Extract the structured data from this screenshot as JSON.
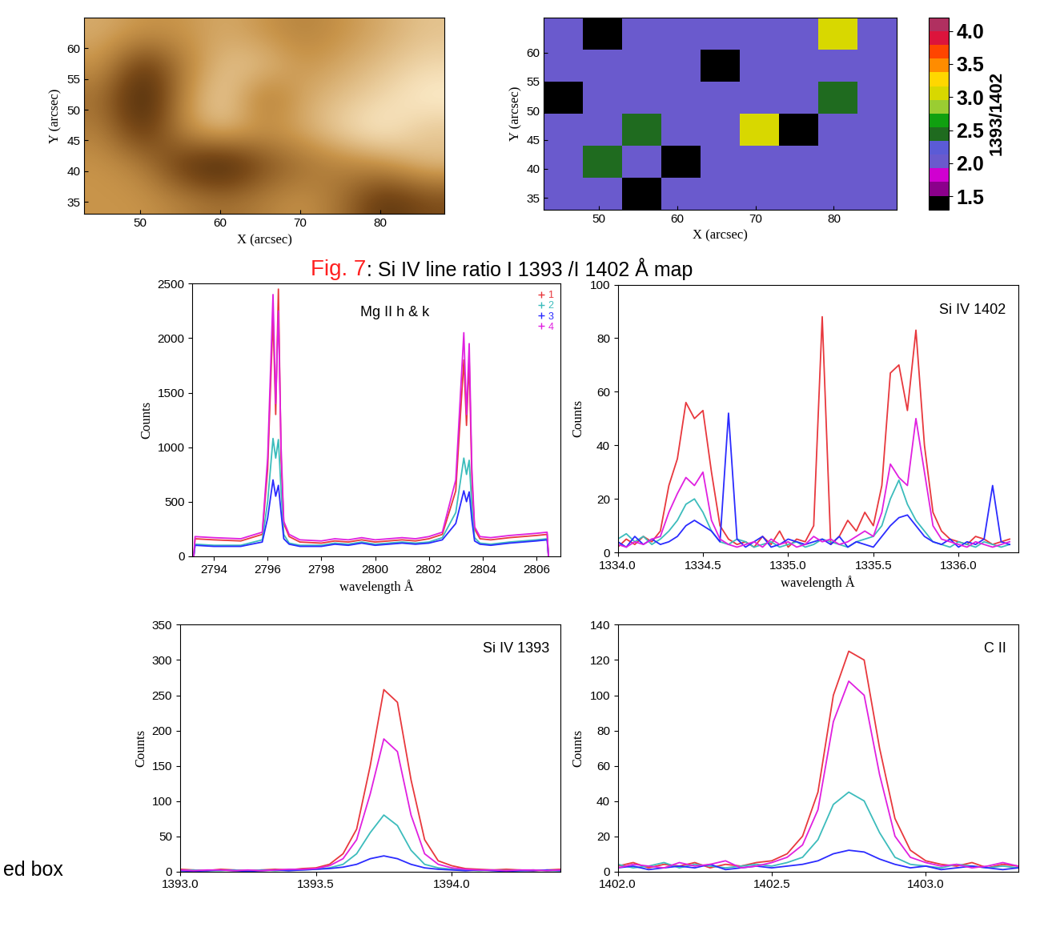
{
  "chart_data": [
    {
      "type": "heatmap",
      "xlabel": "X (arcsec)",
      "ylabel": "Y (arcsec)",
      "xlim": [
        43,
        88
      ],
      "ylim": [
        33,
        65
      ],
      "xticks": [
        50,
        60,
        70,
        80
      ],
      "yticks": [
        35,
        40,
        45,
        50,
        55,
        60
      ],
      "cells": [
        [
          0.6,
          0.6,
          0.55,
          0.5,
          0.55,
          0.6,
          0.5,
          0.3,
          0.4
        ],
        [
          0.6,
          0.55,
          0.3,
          0.2,
          0.4,
          0.5,
          0.55,
          0.6,
          0.7
        ],
        [
          0.55,
          0.3,
          0.6,
          0.7,
          0.6,
          0.65,
          0.75,
          0.8,
          0.7
        ],
        [
          0.5,
          0.2,
          0.6,
          0.75,
          0.5,
          0.65,
          0.7,
          0.75,
          0.8
        ],
        [
          0.6,
          0.3,
          0.55,
          0.7,
          0.7,
          0.6,
          0.65,
          0.7,
          0.75
        ],
        [
          0.65,
          0.6,
          0.6,
          0.65,
          0.6,
          0.55,
          0.6,
          0.65,
          0.7
        ]
      ]
    },
    {
      "type": "heatmap",
      "xlabel": "X (arcsec)",
      "ylabel": "Y (arcsec)",
      "xlim": [
        43,
        88
      ],
      "ylim": [
        33,
        66
      ],
      "xticks": [
        50,
        60,
        70,
        80
      ],
      "yticks": [
        35,
        40,
        45,
        50,
        55,
        60
      ],
      "cells": [
        [
          2.0,
          2.0,
          1.5,
          2.0,
          2.0,
          2.0,
          2.0,
          2.0,
          2.0
        ],
        [
          2.0,
          2.5,
          2.0,
          1.5,
          2.0,
          2.0,
          2.0,
          2.0,
          2.0
        ],
        [
          2.0,
          2.0,
          2.5,
          2.0,
          2.0,
          3.0,
          1.5,
          2.0,
          2.0
        ],
        [
          1.5,
          2.0,
          2.0,
          2.0,
          2.0,
          2.0,
          2.0,
          2.5,
          2.0
        ],
        [
          2.0,
          2.0,
          2.0,
          2.0,
          1.5,
          2.0,
          2.0,
          2.0,
          2.0
        ],
        [
          2.0,
          1.5,
          2.0,
          2.0,
          2.0,
          2.0,
          2.0,
          3.0,
          2.0
        ]
      ],
      "colorbar": {
        "range": [
          1.3,
          4.2
        ],
        "label": "1393/1402",
        "ticks": [
          1.5,
          {
            "value": 2.0,
            "label": "2.0"
          },
          2.5,
          {
            "value": 3.0,
            "label": "3.0"
          },
          3.5,
          {
            "value": 4.0,
            "label": "4.0"
          }
        ]
      }
    },
    {
      "type": "line",
      "title": "Mg II h & k",
      "xlabel": "wavelength Å",
      "ylabel": "Counts",
      "xlim": [
        2793.2,
        2806.9
      ],
      "ylim": [
        0,
        2500
      ],
      "xticks": [
        2794,
        2796,
        2798,
        2800,
        2802,
        2804,
        2806
      ],
      "yticks": [
        0,
        500,
        1000,
        1500,
        2000,
        2500
      ],
      "legend": "upper right",
      "marker": "+",
      "x": [
        2793.25,
        2793.3,
        2794,
        2795,
        2795.8,
        2796.0,
        2796.2,
        2796.3,
        2796.4,
        2796.5,
        2796.6,
        2796.8,
        2797.2,
        2798,
        2798.5,
        2799,
        2799.5,
        2800,
        2800.5,
        2801,
        2801.5,
        2802,
        2802.5,
        2803.0,
        2803.3,
        2803.4,
        2803.5,
        2803.6,
        2803.7,
        2803.9,
        2804.3,
        2805,
        2806,
        2806.4,
        2806.45
      ],
      "series": [
        {
          "name": "1",
          "color": "#e8383d",
          "values": [
            0,
            160,
            150,
            140,
            200,
            800,
            2200,
            1300,
            2450,
            900,
            300,
            180,
            130,
            120,
            140,
            130,
            150,
            130,
            140,
            150,
            140,
            160,
            200,
            600,
            1800,
            1200,
            1800,
            700,
            250,
            160,
            150,
            170,
            190,
            200,
            0
          ]
        },
        {
          "name": "2",
          "color": "#3cbcbc",
          "values": [
            0,
            110,
            100,
            100,
            150,
            500,
            1080,
            900,
            1070,
            600,
            200,
            120,
            100,
            100,
            120,
            110,
            130,
            110,
            120,
            130,
            120,
            130,
            170,
            400,
            900,
            750,
            880,
            450,
            170,
            120,
            110,
            130,
            150,
            160,
            0
          ]
        },
        {
          "name": "3",
          "color": "#2b2bff",
          "values": [
            0,
            100,
            90,
            90,
            130,
            350,
            700,
            550,
            650,
            400,
            160,
            110,
            90,
            90,
            110,
            100,
            120,
            100,
            110,
            120,
            110,
            120,
            150,
            300,
            600,
            500,
            590,
            330,
            140,
            110,
            100,
            120,
            140,
            150,
            0
          ]
        },
        {
          "name": "4",
          "color": "#e020e0",
          "values": [
            0,
            180,
            170,
            160,
            220,
            900,
            2400,
            1400,
            2250,
            1000,
            320,
            200,
            150,
            140,
            160,
            150,
            170,
            150,
            160,
            170,
            160,
            180,
            220,
            700,
            2050,
            1300,
            1950,
            800,
            270,
            180,
            170,
            190,
            210,
            220,
            0
          ]
        }
      ]
    },
    {
      "type": "line",
      "title": "Si IV 1402",
      "xlabel": "wavelength Å",
      "ylabel": "Counts",
      "xlim": [
        1334.0,
        1336.35
      ],
      "ylim": [
        0,
        100
      ],
      "xticks": [
        {
          "value": 1334.0,
          "label": "1334.0"
        },
        1334.5,
        {
          "value": 1335.0,
          "label": "1335.0"
        },
        1335.5,
        {
          "value": 1336.0,
          "label": "1336.0"
        }
      ],
      "yticks": [
        0,
        20,
        40,
        60,
        80,
        100
      ],
      "x": [
        1334.0,
        1334.05,
        1334.1,
        1334.15,
        1334.2,
        1334.25,
        1334.3,
        1334.35,
        1334.4,
        1334.45,
        1334.5,
        1334.55,
        1334.6,
        1334.65,
        1334.7,
        1334.75,
        1334.8,
        1334.85,
        1334.9,
        1334.95,
        1335.0,
        1335.05,
        1335.1,
        1335.15,
        1335.2,
        1335.25,
        1335.3,
        1335.35,
        1335.4,
        1335.45,
        1335.5,
        1335.55,
        1335.6,
        1335.65,
        1335.7,
        1335.75,
        1335.8,
        1335.85,
        1335.9,
        1335.95,
        1336.0,
        1336.05,
        1336.1,
        1336.15,
        1336.2,
        1336.25,
        1336.3
      ],
      "series": [
        {
          "name": "1",
          "color": "#e8383d",
          "values": [
            2,
            5,
            3,
            6,
            4,
            8,
            25,
            35,
            56,
            50,
            53,
            30,
            10,
            5,
            3,
            4,
            2,
            6,
            3,
            8,
            2,
            5,
            4,
            10,
            88,
            3,
            6,
            12,
            8,
            15,
            10,
            25,
            67,
            70,
            53,
            83,
            40,
            15,
            8,
            5,
            4,
            3,
            6,
            5,
            3,
            4,
            5
          ]
        },
        {
          "name": "2",
          "color": "#3cbcbc",
          "values": [
            5,
            7,
            4,
            6,
            3,
            5,
            8,
            12,
            18,
            20,
            15,
            8,
            4,
            3,
            5,
            4,
            2,
            3,
            4,
            2,
            3,
            4,
            2,
            3,
            5,
            4,
            3,
            2,
            4,
            5,
            6,
            10,
            20,
            27,
            18,
            12,
            8,
            4,
            3,
            2,
            4,
            3,
            2,
            4,
            3,
            2,
            3
          ]
        },
        {
          "name": "3",
          "color": "#2b2bff",
          "values": [
            4,
            2,
            6,
            3,
            5,
            3,
            4,
            6,
            10,
            12,
            10,
            8,
            4,
            52,
            5,
            2,
            4,
            6,
            2,
            3,
            5,
            4,
            3,
            4,
            5,
            3,
            6,
            2,
            4,
            3,
            2,
            6,
            10,
            13,
            14,
            10,
            6,
            4,
            3,
            5,
            2,
            4,
            3,
            5,
            25,
            4,
            3
          ]
        },
        {
          "name": "4",
          "color": "#e020e0",
          "values": [
            3,
            2,
            4,
            3,
            5,
            6,
            15,
            22,
            28,
            25,
            30,
            12,
            5,
            3,
            2,
            3,
            4,
            2,
            5,
            3,
            4,
            2,
            3,
            6,
            4,
            5,
            3,
            4,
            6,
            8,
            6,
            15,
            33,
            28,
            25,
            50,
            30,
            10,
            5,
            4,
            3,
            2,
            4,
            3,
            2,
            3,
            4
          ]
        }
      ]
    },
    {
      "type": "line",
      "title": "Si IV 1393",
      "ylabel": "Counts",
      "xlim": [
        1393.0,
        1394.4
      ],
      "ylim": [
        0,
        350
      ],
      "xticks": [
        {
          "value": 1393.0,
          "label": "1393.0"
        },
        1393.5,
        {
          "value": 1394.0,
          "label": "1394.0"
        }
      ],
      "yticks": [
        0,
        50,
        100,
        150,
        200,
        250,
        300,
        350
      ],
      "x": [
        1393.0,
        1393.05,
        1393.1,
        1393.15,
        1393.2,
        1393.25,
        1393.3,
        1393.35,
        1393.4,
        1393.45,
        1393.5,
        1393.55,
        1393.6,
        1393.65,
        1393.7,
        1393.75,
        1393.8,
        1393.85,
        1393.9,
        1393.95,
        1394.0,
        1394.05,
        1394.1,
        1394.15,
        1394.2,
        1394.25,
        1394.3,
        1394.35,
        1394.4
      ],
      "series": [
        {
          "name": "1",
          "color": "#e8383d",
          "values": [
            3,
            2,
            1,
            3,
            2,
            1,
            2,
            3,
            2,
            4,
            5,
            10,
            25,
            60,
            150,
            258,
            240,
            130,
            45,
            15,
            8,
            4,
            3,
            2,
            3,
            2,
            1,
            2,
            3
          ]
        },
        {
          "name": "2",
          "color": "#3cbcbc",
          "values": [
            1,
            2,
            1,
            1,
            2,
            1,
            2,
            1,
            2,
            2,
            3,
            5,
            10,
            25,
            55,
            80,
            65,
            30,
            10,
            5,
            3,
            2,
            1,
            2,
            1,
            1,
            2,
            1,
            1
          ]
        },
        {
          "name": "3",
          "color": "#2b2bff",
          "values": [
            1,
            0,
            1,
            2,
            1,
            0,
            1,
            2,
            1,
            2,
            3,
            4,
            6,
            10,
            18,
            22,
            18,
            10,
            5,
            3,
            2,
            1,
            2,
            1,
            0,
            1,
            1,
            2,
            1
          ]
        },
        {
          "name": "4",
          "color": "#e020e0",
          "values": [
            2,
            1,
            2,
            2,
            1,
            2,
            1,
            2,
            3,
            3,
            4,
            8,
            18,
            45,
            110,
            188,
            170,
            80,
            25,
            10,
            5,
            3,
            2,
            2,
            1,
            2,
            2,
            1,
            2
          ]
        }
      ]
    },
    {
      "type": "line",
      "title": "C II",
      "ylabel": "Counts",
      "xlim": [
        1402.0,
        1403.3
      ],
      "ylim": [
        0,
        140
      ],
      "xticks": [
        {
          "value": 1402.0,
          "label": "1402.0"
        },
        1402.5,
        {
          "value": 1403.0,
          "label": "1403.0"
        }
      ],
      "yticks": [
        0,
        20,
        40,
        60,
        80,
        100,
        120,
        140
      ],
      "x": [
        1402.0,
        1402.05,
        1402.1,
        1402.15,
        1402.2,
        1402.25,
        1402.3,
        1402.35,
        1402.4,
        1402.45,
        1402.5,
        1402.55,
        1402.6,
        1402.65,
        1402.7,
        1402.75,
        1402.8,
        1402.85,
        1402.9,
        1402.95,
        1403.0,
        1403.05,
        1403.1,
        1403.15,
        1403.2,
        1403.25,
        1403.3
      ],
      "series": [
        {
          "name": "1",
          "color": "#e8383d",
          "values": [
            3,
            5,
            2,
            4,
            3,
            5,
            2,
            4,
            3,
            5,
            6,
            10,
            20,
            45,
            100,
            125,
            120,
            70,
            30,
            12,
            6,
            4,
            3,
            5,
            2,
            4,
            3
          ]
        },
        {
          "name": "2",
          "color": "#3cbcbc",
          "values": [
            4,
            2,
            3,
            5,
            2,
            4,
            3,
            2,
            3,
            4,
            3,
            5,
            8,
            18,
            38,
            45,
            40,
            22,
            8,
            4,
            3,
            2,
            4,
            3,
            2,
            3,
            2
          ]
        },
        {
          "name": "3",
          "color": "#2b2bff",
          "values": [
            2,
            3,
            1,
            2,
            3,
            2,
            4,
            1,
            2,
            3,
            2,
            3,
            4,
            6,
            10,
            12,
            11,
            7,
            4,
            2,
            3,
            1,
            2,
            3,
            2,
            1,
            2
          ]
        },
        {
          "name": "4",
          "color": "#e020e0",
          "values": [
            2,
            4,
            3,
            2,
            5,
            3,
            4,
            6,
            2,
            3,
            5,
            8,
            15,
            35,
            85,
            108,
            100,
            55,
            20,
            8,
            5,
            3,
            4,
            2,
            3,
            5,
            3
          ]
        }
      ]
    }
  ],
  "caption": {
    "label": "Fig. 7",
    "text": ": Si IV line ratio I 1393 /I 1402 Å map"
  },
  "fragment": "ed box"
}
